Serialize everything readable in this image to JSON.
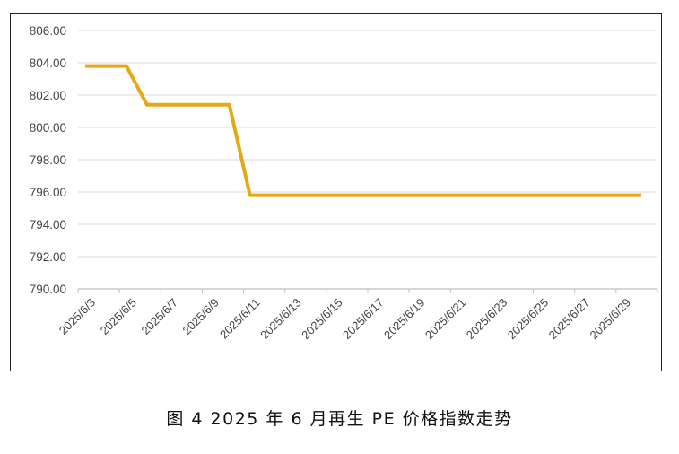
{
  "chart_data": {
    "type": "line",
    "x": [
      "2025/6/3",
      "2025/6/4",
      "2025/6/5",
      "2025/6/6",
      "2025/6/7",
      "2025/6/8",
      "2025/6/9",
      "2025/6/10",
      "2025/6/11",
      "2025/6/12",
      "2025/6/13",
      "2025/6/14",
      "2025/6/15",
      "2025/6/16",
      "2025/6/17",
      "2025/6/18",
      "2025/6/19",
      "2025/6/20",
      "2025/6/21",
      "2025/6/22",
      "2025/6/23",
      "2025/6/24",
      "2025/6/25",
      "2025/6/26",
      "2025/6/27",
      "2025/6/28",
      "2025/6/29",
      "2025/6/30"
    ],
    "x_tick_labels": [
      "2025/6/3",
      "2025/6/5",
      "2025/6/7",
      "2025/6/9",
      "2025/6/11",
      "2025/6/13",
      "2025/6/15",
      "2025/6/17",
      "2025/6/19",
      "2025/6/21",
      "2025/6/23",
      "2025/6/25",
      "2025/6/27",
      "2025/6/29"
    ],
    "series": [
      {
        "values": [
          803.8,
          803.8,
          803.8,
          801.4,
          801.4,
          801.4,
          801.4,
          801.4,
          795.8,
          795.8,
          795.8,
          795.8,
          795.8,
          795.8,
          795.8,
          795.8,
          795.8,
          795.8,
          795.8,
          795.8,
          795.8,
          795.8,
          795.8,
          795.8,
          795.8,
          795.8,
          795.8,
          795.8
        ],
        "color": "#E6A817"
      }
    ],
    "y_tick_labels": [
      "790.00",
      "792.00",
      "794.00",
      "796.00",
      "798.00",
      "800.00",
      "802.00",
      "804.00",
      "806.00"
    ],
    "ylim": [
      790,
      806
    ],
    "grid": true,
    "legend": "none"
  },
  "caption": "图 4  2025 年 6 月再生 PE 价格指数走势"
}
